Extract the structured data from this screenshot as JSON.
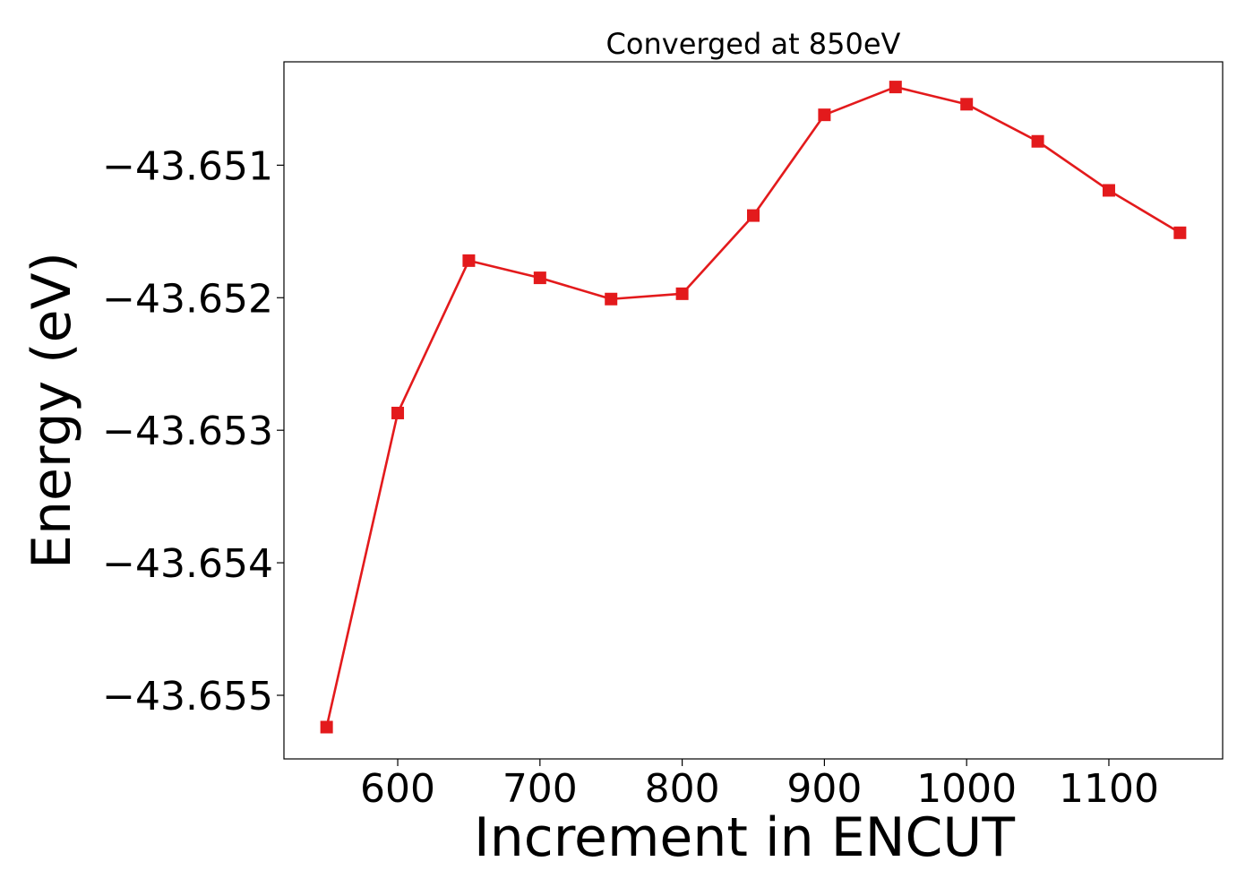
{
  "chart_data": {
    "type": "line",
    "title": "Converged at 850eV",
    "xlabel": "Increment in ENCUT",
    "ylabel": "Energy (eV)",
    "xlim": [
      520,
      1180
    ],
    "ylim": [
      -43.65548,
      -43.65022
    ],
    "x_ticks": [
      600,
      700,
      800,
      900,
      1000,
      1100
    ],
    "x_tick_labels": [
      "600",
      "700",
      "800",
      "900",
      "1000",
      "1100"
    ],
    "y_ticks": [
      -43.655,
      -43.654,
      -43.653,
      -43.652,
      -43.651
    ],
    "y_tick_labels": [
      "−43.655",
      "−43.654",
      "−43.653",
      "−43.652",
      "−43.651"
    ],
    "grid": false,
    "series": [
      {
        "color": "#e31a1c",
        "marker": "square",
        "x": [
          550,
          600,
          650,
          700,
          750,
          800,
          850,
          900,
          950,
          1000,
          1050,
          1100,
          1150
        ],
        "y": [
          -43.65524,
          -43.65287,
          -43.65172,
          -43.65185,
          -43.65201,
          -43.65197,
          -43.65138,
          -43.65062,
          -43.65041,
          -43.65054,
          -43.65082,
          -43.65119,
          -43.65151
        ]
      }
    ]
  }
}
